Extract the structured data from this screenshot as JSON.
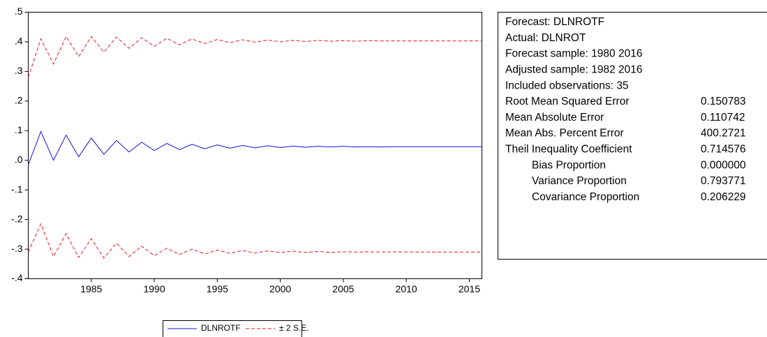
{
  "chart_data": {
    "type": "line",
    "x": [
      1980,
      1981,
      1982,
      1983,
      1984,
      1985,
      1986,
      1987,
      1988,
      1989,
      1990,
      1991,
      1992,
      1993,
      1994,
      1995,
      1996,
      1997,
      1998,
      1999,
      2000,
      2001,
      2002,
      2003,
      2004,
      2005,
      2006,
      2007,
      2008,
      2009,
      2010,
      2011,
      2012,
      2013,
      2014,
      2015,
      2016
    ],
    "xlim": [
      1980,
      2016
    ],
    "xticks": [
      1985,
      1990,
      1995,
      2000,
      2005,
      2010,
      2015
    ],
    "ylim": [
      -0.4,
      0.5
    ],
    "yticks": [
      {
        "value": -0.4,
        "label": "-.4"
      },
      {
        "value": -0.3,
        "label": "-.3"
      },
      {
        "value": -0.2,
        "label": "-.2"
      },
      {
        "value": -0.1,
        "label": "-.1"
      },
      {
        "value": 0,
        "label": ".0"
      },
      {
        "value": 0.1,
        "label": ".1"
      },
      {
        "value": 0.2,
        "label": ".2"
      },
      {
        "value": 0.3,
        "label": ".3"
      },
      {
        "value": 0.4,
        "label": ".4"
      },
      {
        "value": 0.5,
        "label": ".5"
      }
    ],
    "grid": false,
    "series": [
      {
        "name": "DLNROTF",
        "color": "#1010e0",
        "dashed": false,
        "values": [
          -0.015,
          0.097,
          0,
          0.085,
          0.012,
          0.075,
          0.02,
          0.067,
          0.028,
          0.061,
          0.033,
          0.057,
          0.036,
          0.054,
          0.039,
          0.052,
          0.041,
          0.05,
          0.042,
          0.049,
          0.043,
          0.048,
          0.044,
          0.047,
          0.045,
          0.047,
          0.045,
          0.046,
          0.045,
          0.046,
          0.046,
          0.046,
          0.046,
          0.046,
          0.046,
          0.046,
          0.046
        ]
      },
      {
        "name": "± 2 S.E.",
        "color": "#e8181f",
        "dashed": true,
        "values": [
          0.28,
          0.41,
          0.325,
          0.418,
          0.35,
          0.418,
          0.365,
          0.416,
          0.378,
          0.414,
          0.385,
          0.412,
          0.39,
          0.41,
          0.394,
          0.408,
          0.397,
          0.407,
          0.399,
          0.406,
          0.4,
          0.405,
          0.401,
          0.405,
          0.402,
          0.404,
          0.402,
          0.404,
          0.403,
          0.403,
          0.403,
          0.403,
          0.403,
          0.403,
          0.403,
          0.403,
          0.403
        ],
        "lower": [
          -0.31,
          -0.215,
          -0.325,
          -0.248,
          -0.328,
          -0.265,
          -0.33,
          -0.28,
          -0.325,
          -0.29,
          -0.322,
          -0.297,
          -0.318,
          -0.3,
          -0.316,
          -0.303,
          -0.314,
          -0.305,
          -0.313,
          -0.306,
          -0.312,
          -0.307,
          -0.311,
          -0.308,
          -0.311,
          -0.309,
          -0.31,
          -0.309,
          -0.31,
          -0.309,
          -0.31,
          -0.31,
          -0.31,
          -0.31,
          -0.31,
          -0.31,
          -0.31
        ]
      }
    ]
  },
  "stats": {
    "lines": [
      "Forecast: DLNROTF",
      "Actual: DLNROT",
      "Forecast sample: 1980 2016",
      "Adjusted sample: 1982 2016",
      "Included observations: 35"
    ],
    "rows": [
      {
        "label": "Root Mean Squared Error",
        "value": "0.150783",
        "indent": false
      },
      {
        "label": "Mean Absolute Error",
        "value": "0.110742",
        "indent": false
      },
      {
        "label": "Mean Abs. Percent Error",
        "value": "400.2721",
        "indent": false
      },
      {
        "label": "Theil Inequality Coefficient",
        "value": "0.714576",
        "indent": false
      },
      {
        "label": "Bias Proportion",
        "value": "0.000000",
        "indent": true
      },
      {
        "label": "Variance Proportion",
        "value": "0.793771",
        "indent": true
      },
      {
        "label": "Covariance Proportion",
        "value": "0.206229",
        "indent": true
      }
    ]
  }
}
